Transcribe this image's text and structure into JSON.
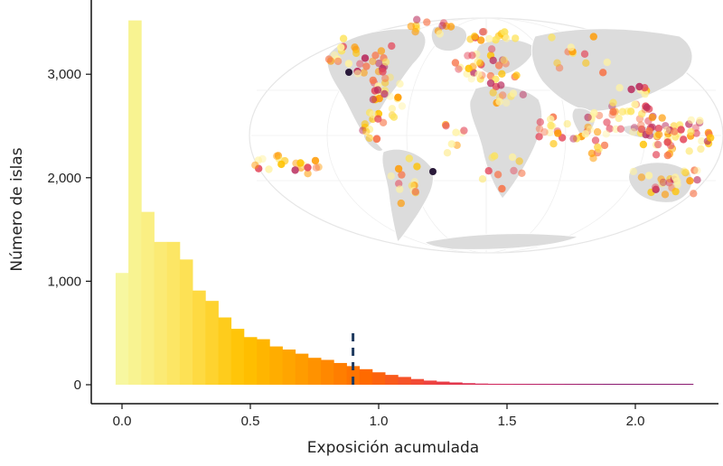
{
  "chart_data": {
    "type": "bar",
    "subtype": "histogram",
    "xlabel": "Exposición acumulada",
    "ylabel": "Número de islas",
    "xlim": [
      -0.1,
      2.3
    ],
    "ylim": [
      0,
      3600
    ],
    "x_ticks": [
      0.0,
      0.5,
      1.0,
      1.5,
      2.0
    ],
    "x_tick_labels": [
      "0.0",
      "0.5",
      "1.0",
      "1.5",
      "2.0"
    ],
    "y_ticks": [
      0,
      1000,
      2000,
      3000
    ],
    "y_tick_labels": [
      "0",
      "1,000",
      "2,000",
      "3,000"
    ],
    "bin_width": 0.05,
    "bins_start": [
      -0.025,
      0.025,
      0.075,
      0.125,
      0.175,
      0.225,
      0.275,
      0.325,
      0.375,
      0.425,
      0.475,
      0.525,
      0.575,
      0.625,
      0.675,
      0.725,
      0.775,
      0.825,
      0.875,
      0.925,
      0.975,
      1.025,
      1.075,
      1.125,
      1.175,
      1.225,
      1.275,
      1.325,
      1.375,
      1.425,
      1.475,
      1.525,
      1.575,
      1.625,
      1.675,
      1.725,
      1.775,
      1.825,
      1.875,
      1.925,
      1.975,
      2.025,
      2.075,
      2.125,
      2.175
    ],
    "values": [
      1080,
      3520,
      1670,
      1380,
      1380,
      1210,
      910,
      810,
      650,
      540,
      460,
      440,
      370,
      340,
      300,
      260,
      240,
      210,
      180,
      150,
      120,
      95,
      75,
      55,
      40,
      30,
      22,
      15,
      11,
      9,
      6,
      5,
      4,
      3,
      3,
      2,
      2,
      1,
      1,
      1,
      1,
      1,
      1,
      1,
      1
    ],
    "threshold_line": {
      "x": 0.9,
      "style": "dashed",
      "color": "#1f3a5f"
    },
    "colormap": [
      "#f7f7a0",
      "#fde35a",
      "#ffc200",
      "#ff9a00",
      "#ff6a00",
      "#f0453f",
      "#d3285a",
      "#b21e6a",
      "#8a1a70"
    ],
    "grid": false,
    "legend": "none"
  },
  "inset_map": {
    "type": "world-map",
    "projection": "Mollweide",
    "land_color": "#dddddd",
    "border_color": "#ffffff",
    "point_colors": [
      "#fff2a0",
      "#fde35a",
      "#ffc200",
      "#ff9a00",
      "#f7764b",
      "#e4475a",
      "#b92a5c",
      "#2a1a3a"
    ]
  }
}
